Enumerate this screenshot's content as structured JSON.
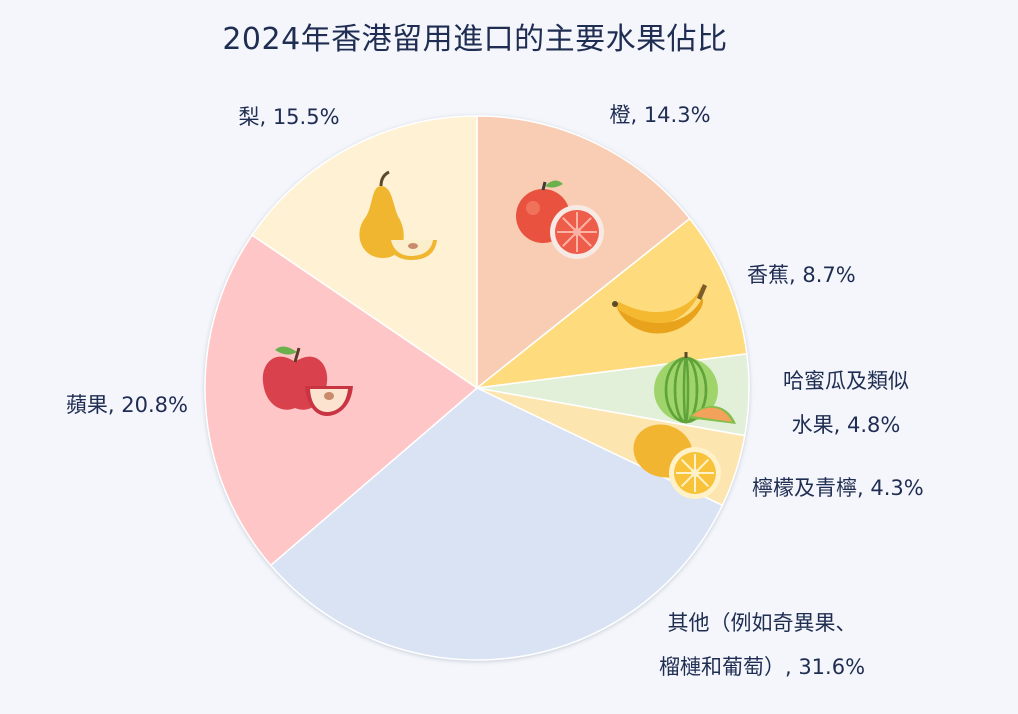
{
  "chart_data": {
    "type": "pie",
    "title": "2024年香港留用進口的主要水果佔比",
    "unit": "%",
    "slices": [
      {
        "name": "橙",
        "value": 14.3,
        "label_lines": [
          "橙, 14.3%"
        ],
        "color": "#f8cdb4",
        "icon": "orange-fruit-icon"
      },
      {
        "name": "香蕉",
        "value": 8.7,
        "label_lines": [
          "香蕉, 8.7%"
        ],
        "color": "#fedb7c",
        "icon": "banana-icon"
      },
      {
        "name": "哈蜜瓜及類似水果",
        "value": 4.8,
        "label_lines": [
          "哈蜜瓜及類似",
          "水果, 4.8%"
        ],
        "color": "#e2efd9",
        "icon": "melon-icon"
      },
      {
        "name": "檸檬及青檸",
        "value": 4.3,
        "label_lines": [
          "檸檬及青檸, 4.3%"
        ],
        "color": "#fde5b0",
        "icon": "lemon-icon"
      },
      {
        "name": "其他（例如奇異果、榴槤和葡萄）",
        "value": 31.6,
        "label_lines": [
          "其他（例如奇異果、",
          "榴槤和葡萄）, 31.6%"
        ],
        "color": "#d9e3f4",
        "icon": ""
      },
      {
        "name": "蘋果",
        "value": 20.8,
        "label_lines": [
          "蘋果, 20.8%"
        ],
        "color": "#ffc6c8",
        "icon": "apple-icon"
      },
      {
        "name": "梨",
        "value": 15.5,
        "label_lines": [
          "梨, 15.5%"
        ],
        "color": "#fff2d4",
        "icon": "pear-icon"
      }
    ]
  }
}
